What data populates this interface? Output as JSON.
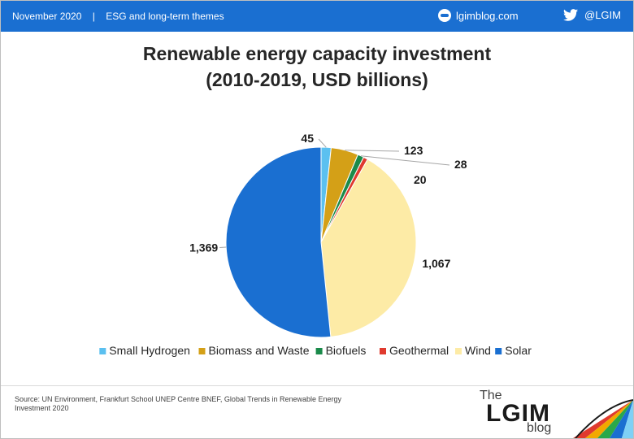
{
  "header": {
    "date": "November 2020",
    "separator": "|",
    "section": "ESG and long-term themes",
    "site": "lgimblog.com",
    "twitter": "@LGIM"
  },
  "chart_data": {
    "type": "pie",
    "title_line1": "Renewable energy capacity investment",
    "title_line2": "(2010-2019, USD billions)",
    "start_angle_deg": 0,
    "direction": "clockwise",
    "legend_position": "bottom",
    "slices": [
      {
        "name": "Small Hydrogen",
        "value": 45,
        "label": "45",
        "color": "#5bc0f0"
      },
      {
        "name": "Biomass and Waste",
        "value": 123,
        "label": "123",
        "color": "#d4a017"
      },
      {
        "name": "Biofuels",
        "value": 28,
        "label": "28",
        "color": "#1a8a4a"
      },
      {
        "name": "Geothermal",
        "value": 20,
        "label": "20",
        "color": "#e03a2e"
      },
      {
        "name": "Wind",
        "value": 1067,
        "label": "1,067",
        "color": "#fdeba6"
      },
      {
        "name": "Solar",
        "value": 1369,
        "label": "1,369",
        "color": "#1a6fd1"
      }
    ]
  },
  "footer": {
    "source": "Source: UN Environment, Frankfurt School UNEP Centre BNEF, Global Trends in Renewable Energy Investment 2020",
    "logo_the": "The",
    "logo_lgim": "LGIM",
    "logo_blog": "blog"
  }
}
